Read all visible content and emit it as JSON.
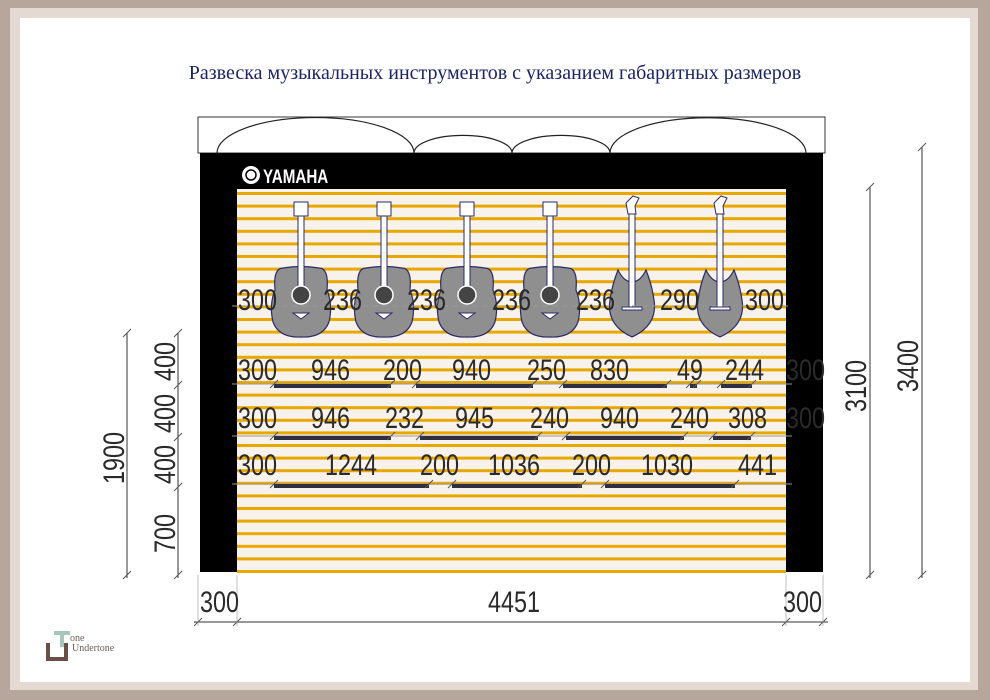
{
  "title": "Развеска музыкальных инструментов с указанием габаритных размеров",
  "brand": "YAMAHA",
  "logo": {
    "letter_t": "T",
    "one": "one",
    "name": "Undertone"
  },
  "colors": {
    "slat": "#e8a800",
    "slat_bg": "#f7f2ec",
    "frame": "#000000",
    "guitar": "#8f8f8f",
    "outline": "#2a2a6a",
    "bar": "#2f2f44",
    "title": "#1c2466"
  },
  "guitars": [
    {
      "type": "acoustic"
    },
    {
      "type": "acoustic"
    },
    {
      "type": "acoustic"
    },
    {
      "type": "acoustic"
    },
    {
      "type": "electric"
    },
    {
      "type": "electric"
    }
  ],
  "rows": [
    {
      "name": "guitars",
      "labels": [
        "300",
        "236",
        "236",
        "236",
        "236",
        "290",
        "300"
      ]
    },
    {
      "name": "shelf-1",
      "labels": [
        "300",
        "946",
        "200",
        "940",
        "250",
        "830",
        "49",
        "244"
      ],
      "right": "300"
    },
    {
      "name": "shelf-2",
      "labels": [
        "300",
        "946",
        "232",
        "945",
        "240",
        "940",
        "240",
        "308"
      ],
      "right": "300"
    },
    {
      "name": "shelf-3",
      "labels": [
        "300",
        "1244",
        "200",
        "1036",
        "200",
        "1030",
        "441"
      ]
    }
  ],
  "left_dims": {
    "total": "1900",
    "parts": [
      "700",
      "400",
      "400",
      "400"
    ]
  },
  "right_dims": [
    "3100",
    "3400"
  ],
  "bottom_dims": [
    "300",
    "4451",
    "300"
  ]
}
